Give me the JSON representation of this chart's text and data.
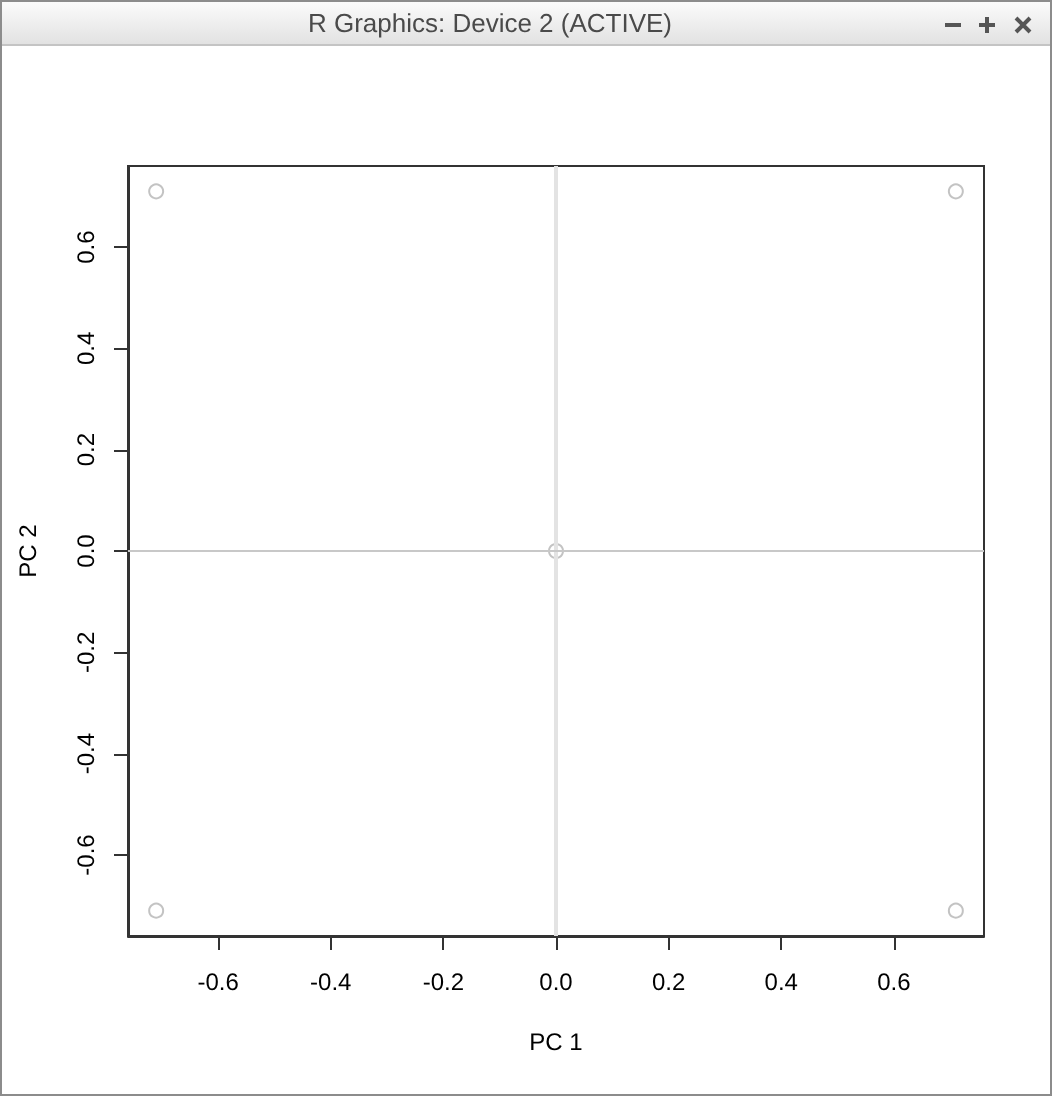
{
  "chart_data": {
    "type": "scatter",
    "xlabel": "PC 1",
    "ylabel": "PC 2",
    "annotations": [
      "R Graphics: Device 2 (ACTIVE)"
    ],
    "x": [
      -0.71,
      0.71,
      0,
      -0.71,
      0.71
    ],
    "values": [
      0.71,
      0.71,
      0,
      -0.71,
      -0.71
    ],
    "color": "#b4b4b4",
    "marker": "circle",
    "xlim": [
      -0.76,
      0.76
    ],
    "xticks": [
      -0.6,
      -0.4,
      -0.2,
      {
        "value": 0,
        "label": "0.0"
      },
      0.2,
      0.4,
      0.6
    ],
    "ylim": [
      -0.76,
      0.76
    ],
    "yticks": [
      -0.6,
      -0.4,
      -0.2,
      {
        "value": 0,
        "label": "0.0"
      },
      0.2,
      0.4,
      0.6
    ],
    "ref_lines": [
      {
        "axis": "x",
        "value": 0,
        "color": "#e3e3e3"
      },
      {
        "axis": "y",
        "value": 0,
        "color": "#c8c8c8"
      }
    ]
  }
}
